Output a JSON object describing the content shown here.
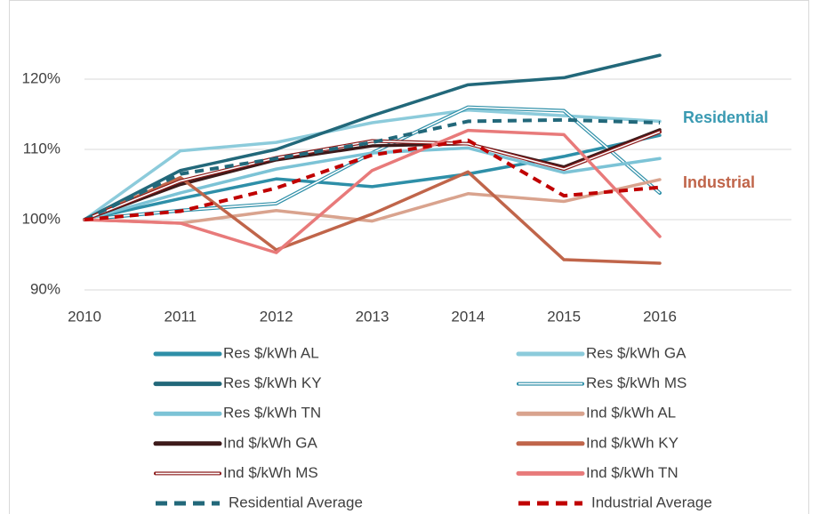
{
  "chart_data": {
    "type": "line",
    "categories": [
      "2010",
      "2011",
      "2012",
      "2013",
      "2014",
      "2015",
      "2016"
    ],
    "ylim": [
      90,
      126
    ],
    "yticks": [
      {
        "value": 90,
        "label": "90%"
      },
      {
        "value": 100,
        "label": "100%"
      },
      {
        "value": 110,
        "label": "110%"
      },
      {
        "value": 120,
        "label": "120%"
      }
    ],
    "grid": true,
    "legend": "bottom",
    "annotations": [
      {
        "text": "Residential",
        "color": "#3a9ab2"
      },
      {
        "text": "Industrial",
        "color": "#c0654a"
      }
    ],
    "series": [
      {
        "name": "Res $/kWh AL",
        "color": "#2e8fa8",
        "style": "solid",
        "values": [
          100,
          103,
          105.8,
          104.7,
          106.5,
          109,
          112
        ]
      },
      {
        "name": "Res $/kWh GA",
        "color": "#8ccbdb",
        "style": "solid",
        "values": [
          100,
          109.8,
          111,
          113.8,
          115.6,
          114.8,
          114
        ]
      },
      {
        "name": "Res $/kWh KY",
        "color": "#22687a",
        "style": "solid",
        "values": [
          100,
          107,
          110,
          114.8,
          119.2,
          120.2,
          123.4
        ]
      },
      {
        "name": "Res $/kWh MS",
        "color": "#2e8fa8",
        "style": "double",
        "values": [
          100,
          101.3,
          102.3,
          109.5,
          116,
          115.5,
          103.8
        ]
      },
      {
        "name": "Res $/kWh TN",
        "color": "#7cc3d6",
        "style": "solid",
        "values": [
          100,
          103.8,
          107.2,
          109.5,
          110.2,
          106.7,
          108.7
        ]
      },
      {
        "name": "Ind $/kWh AL",
        "color": "#d9a38e",
        "style": "solid",
        "values": [
          100,
          99.5,
          101.3,
          99.8,
          103.7,
          102.6,
          105.7
        ]
      },
      {
        "name": "Ind $/kWh GA",
        "color": "#3d1a1a",
        "style": "solid",
        "values": [
          100,
          105,
          108.5,
          110.5,
          110.8,
          107.5,
          112.8
        ]
      },
      {
        "name": "Ind $/kWh KY",
        "color": "#c0654a",
        "style": "solid",
        "values": [
          100,
          106,
          95.7,
          100.8,
          106.8,
          94.3,
          93.8
        ]
      },
      {
        "name": "Ind $/kWh MS",
        "color": "#8b1a1a",
        "style": "double",
        "values": [
          100,
          105.5,
          108.8,
          111.2,
          110.8,
          107.2,
          112.5
        ]
      },
      {
        "name": "Ind $/kWh TN",
        "color": "#e87a7a",
        "style": "solid",
        "values": [
          100,
          99.5,
          95.3,
          107,
          112.7,
          112.1,
          97.6
        ]
      },
      {
        "name": "Residential Average",
        "color": "#22687a",
        "style": "dashed",
        "values": [
          100,
          106.5,
          108.7,
          111,
          114,
          114.2,
          113.8
        ]
      },
      {
        "name": "Industrial Average",
        "color": "#c00000",
        "style": "dashed",
        "values": [
          100,
          101.2,
          104.5,
          109.2,
          111.3,
          103.4,
          104.6
        ]
      }
    ]
  }
}
